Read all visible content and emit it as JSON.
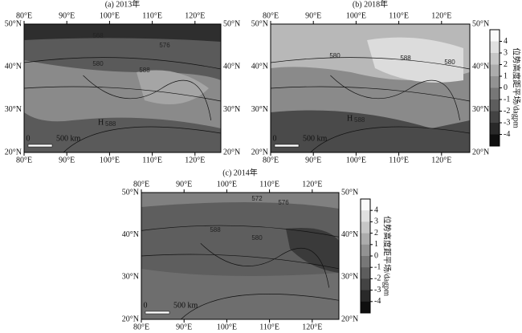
{
  "lon_labels": [
    "80°E",
    "90°E",
    "100°E",
    "110°E",
    "120°E"
  ],
  "lat_labels": [
    "50°N",
    "40°N",
    "30°N",
    "20°N"
  ],
  "scale_bar": {
    "start": "0",
    "end": "500 km"
  },
  "colorbar": {
    "title": "位势高度距平场/dagpm",
    "ticks": [
      4,
      3,
      2,
      1,
      0,
      -1,
      -2,
      -3,
      -4
    ]
  },
  "panels": [
    {
      "title": "(a) 2013年",
      "contour_labels": [
        "568",
        "576",
        "580",
        "588"
      ],
      "high": {
        "symbol": "H",
        "value": "588"
      }
    },
    {
      "title": "(b) 2018年",
      "contour_labels": [
        "580",
        "588",
        "580"
      ],
      "high": {
        "symbol": "H",
        "value": "588"
      }
    },
    {
      "title": "(c) 2014年",
      "contour_labels": [
        "572",
        "576",
        "588",
        "580"
      ]
    }
  ]
}
